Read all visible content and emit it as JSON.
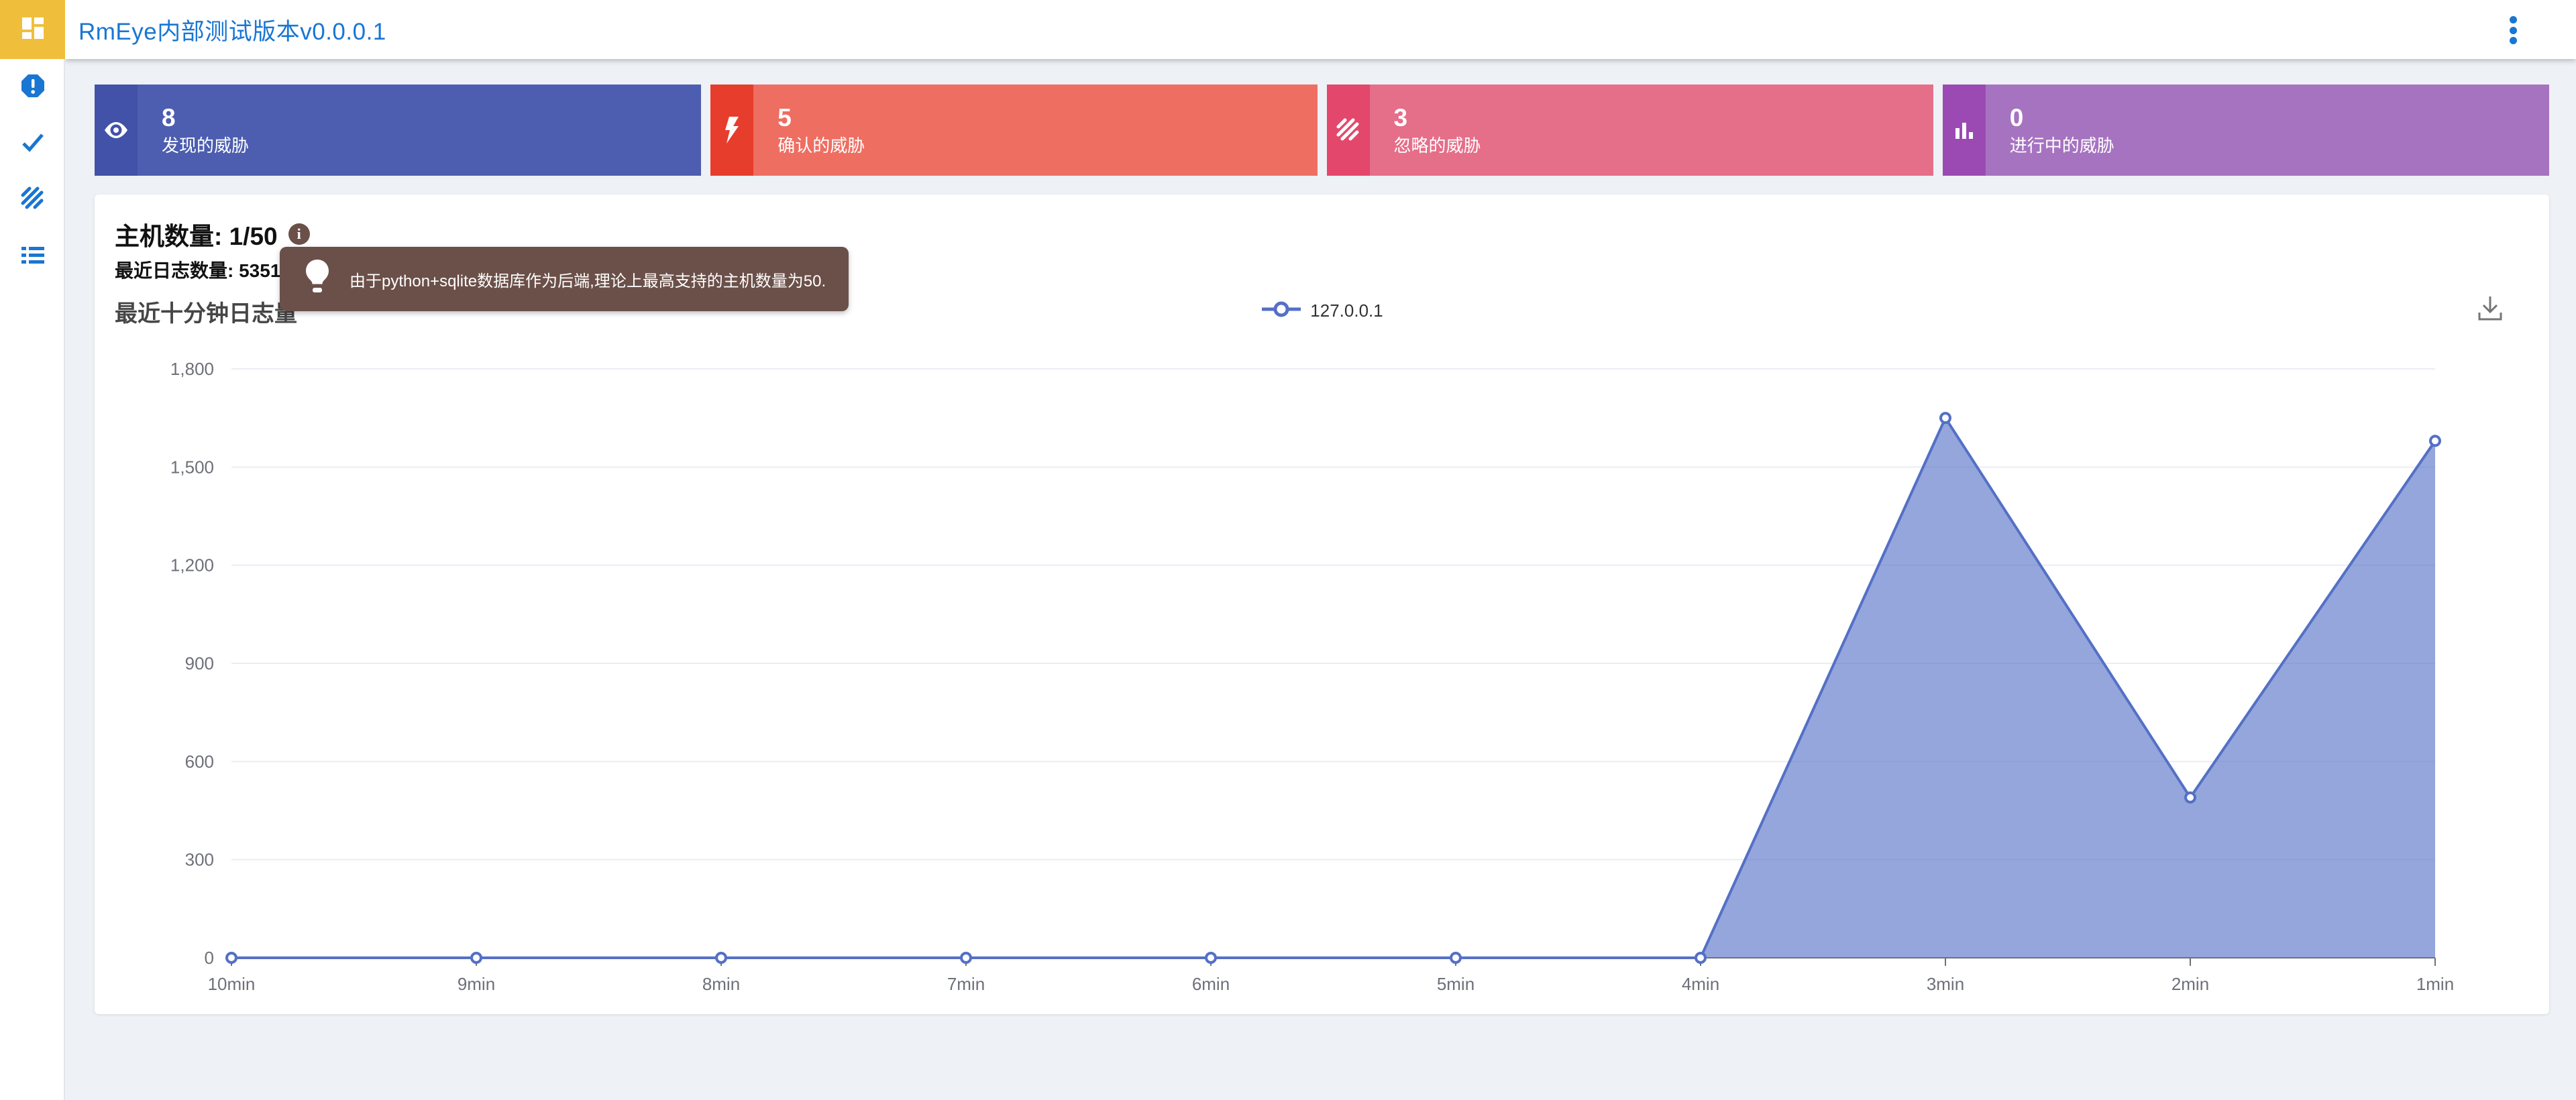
{
  "header": {
    "title": "RmEye内部测试版本v0.0.0.1"
  },
  "sidebar": {
    "items": [
      {
        "id": "dashboard",
        "icon": "dashboard-grid-icon",
        "active": true
      },
      {
        "id": "found-threats",
        "icon": "alert-octagon-icon",
        "active": false
      },
      {
        "id": "confirmed-threats",
        "icon": "check-icon",
        "active": false
      },
      {
        "id": "ignored-threats",
        "icon": "hatch-icon",
        "active": false
      },
      {
        "id": "log-list",
        "icon": "list-icon",
        "active": false
      }
    ]
  },
  "cards": [
    {
      "value": "8",
      "label": "发现的威胁",
      "icon": "eye-icon",
      "body_color": "#4d5eb0",
      "accent_color": "#4252a8"
    },
    {
      "value": "5",
      "label": "确认的威胁",
      "icon": "lightning-icon",
      "body_color": "#ee6e62",
      "accent_color": "#e73d2c"
    },
    {
      "value": "3",
      "label": "忽略的威胁",
      "icon": "stripes-icon",
      "body_color": "#e56e89",
      "accent_color": "#e4476c"
    },
    {
      "value": "0",
      "label": "进行中的威胁",
      "icon": "bar-chart-icon",
      "body_color": "#a673c0",
      "accent_color": "#9b4ab4"
    }
  ],
  "panel": {
    "host_count_label": "主机数量: 1/50",
    "log_count_label": "最近日志数量: 5351",
    "info_icon_glyph": "i",
    "tooltip_text": "由于python+sqlite数据库作为后端,理论上最高支持的主机数量为50.",
    "tooltip_color": "#6b5049"
  },
  "chart_data": {
    "type": "area",
    "title": "最近十分钟日志量",
    "legend": [
      "127.0.0.1"
    ],
    "legend_position": "top-center",
    "categories": [
      "10min",
      "9min",
      "8min",
      "7min",
      "6min",
      "5min",
      "4min",
      "3min",
      "2min",
      "1min"
    ],
    "series": [
      {
        "name": "127.0.0.1",
        "values": [
          0,
          0,
          0,
          0,
          0,
          0,
          0,
          1650,
          490,
          1580
        ]
      }
    ],
    "xlabel": "",
    "ylabel": "",
    "ylim": [
      0,
      1800
    ],
    "yticks": [
      0,
      300,
      600,
      900,
      1200,
      1500,
      1800
    ],
    "ytick_labels": [
      "0",
      "300",
      "600",
      "900",
      "1,200",
      "1,500",
      "1,800"
    ],
    "grid": true,
    "line_color": "#5470c6",
    "area_color": "rgba(84,112,198,0.62)",
    "axis_color": "#6e7079",
    "grid_color": "#e9edf4",
    "toolbox": [
      "save-as-image"
    ]
  }
}
